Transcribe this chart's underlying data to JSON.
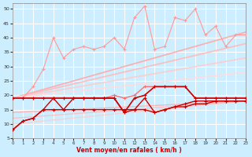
{
  "xlabel": "Vent moyen/en rafales ( km/h )",
  "xlim": [
    0,
    23
  ],
  "ylim": [
    5,
    52
  ],
  "yticks": [
    5,
    10,
    15,
    20,
    25,
    30,
    35,
    40,
    45,
    50
  ],
  "xticks": [
    0,
    1,
    2,
    3,
    4,
    5,
    6,
    7,
    8,
    9,
    10,
    11,
    12,
    13,
    14,
    15,
    16,
    17,
    18,
    19,
    20,
    21,
    22,
    23
  ],
  "bg_color": "#cceeff",
  "grid_color": "#ffffff",
  "lines": [
    {
      "x": [
        0,
        1,
        2,
        3,
        4,
        5,
        6,
        7,
        8,
        9,
        10,
        11,
        12,
        13,
        14,
        15,
        16,
        17,
        18,
        19,
        20,
        21,
        22,
        23
      ],
      "y": [
        8,
        11,
        12,
        15,
        15,
        15,
        15,
        15,
        15,
        15,
        15,
        15,
        15,
        15,
        14,
        15,
        16,
        16,
        17,
        17,
        18,
        18,
        18,
        18
      ],
      "color": "#cc0000",
      "lw": 1.0,
      "marker": "+",
      "ms": 3.0,
      "alpha": 1.0,
      "zorder": 5
    },
    {
      "x": [
        0,
        1,
        2,
        3,
        4,
        5,
        6,
        7,
        8,
        9,
        10,
        11,
        12,
        13,
        14,
        15,
        16,
        17,
        18,
        19,
        20,
        21,
        22,
        23
      ],
      "y": [
        8,
        11,
        12,
        15,
        19,
        15,
        19,
        19,
        19,
        19,
        19,
        14,
        15,
        19,
        14,
        15,
        16,
        17,
        18,
        18,
        18,
        18,
        18,
        18
      ],
      "color": "#cc0000",
      "lw": 1.0,
      "marker": "+",
      "ms": 3.0,
      "alpha": 1.0,
      "zorder": 5
    },
    {
      "x": [
        0,
        1,
        2,
        3,
        4,
        5,
        6,
        7,
        8,
        9,
        10,
        11,
        12,
        13,
        14,
        15,
        16,
        17,
        18,
        19,
        20,
        21,
        22,
        23
      ],
      "y": [
        19,
        19,
        19,
        19,
        19,
        19,
        19,
        19,
        19,
        19,
        19,
        14,
        19,
        20,
        23,
        23,
        23,
        23,
        19,
        19,
        19,
        19,
        19,
        19
      ],
      "color": "#cc0000",
      "lw": 1.2,
      "marker": "+",
      "ms": 3.0,
      "alpha": 1.0,
      "zorder": 5
    },
    {
      "x": [
        0,
        1,
        2,
        3,
        4,
        5,
        6,
        7,
        8,
        9,
        10,
        11,
        12,
        13,
        14,
        15,
        16,
        17,
        18,
        19,
        20,
        21,
        22,
        23
      ],
      "y": [
        19,
        19,
        19,
        19,
        19,
        19,
        19,
        19,
        19,
        19,
        20,
        19,
        20,
        23,
        23,
        23,
        23,
        23,
        19,
        19,
        19,
        19,
        19,
        19
      ],
      "color": "#ff6666",
      "lw": 1.0,
      "marker": "+",
      "ms": 3.0,
      "alpha": 0.9,
      "zorder": 4
    },
    {
      "x": [
        0,
        1,
        2,
        3,
        4,
        5,
        6,
        7,
        8,
        9,
        10,
        11,
        12,
        13,
        14,
        15,
        16,
        17,
        18,
        19,
        20,
        21,
        22,
        23
      ],
      "y": [
        19,
        19,
        23,
        29,
        40,
        33,
        36,
        37,
        36,
        37,
        40,
        36,
        47,
        51,
        36,
        37,
        47,
        46,
        50,
        41,
        44,
        37,
        41,
        41
      ],
      "color": "#ff9999",
      "lw": 0.8,
      "marker": "+",
      "ms": 2.5,
      "alpha": 1.0,
      "zorder": 3
    },
    {
      "x": [
        0,
        23
      ],
      "y": [
        19,
        42
      ],
      "color": "#ffaaaa",
      "lw": 1.3,
      "marker": null,
      "ms": 0,
      "alpha": 0.9,
      "zorder": 2
    },
    {
      "x": [
        0,
        23
      ],
      "y": [
        19,
        38
      ],
      "color": "#ffbbbb",
      "lw": 1.3,
      "marker": null,
      "ms": 0,
      "alpha": 0.9,
      "zorder": 2
    },
    {
      "x": [
        0,
        23
      ],
      "y": [
        19,
        33
      ],
      "color": "#ffcccc",
      "lw": 1.3,
      "marker": null,
      "ms": 0,
      "alpha": 0.9,
      "zorder": 2
    },
    {
      "x": [
        0,
        23
      ],
      "y": [
        19,
        28
      ],
      "color": "#ffdddd",
      "lw": 1.3,
      "marker": null,
      "ms": 0,
      "alpha": 0.9,
      "zorder": 2
    },
    {
      "x": [
        0,
        23
      ],
      "y": [
        10,
        18
      ],
      "color": "#ffcccc",
      "lw": 1.0,
      "marker": null,
      "ms": 0,
      "alpha": 0.8,
      "zorder": 2
    },
    {
      "x": [
        0,
        23
      ],
      "y": [
        12,
        18
      ],
      "color": "#ffbbbb",
      "lw": 1.0,
      "marker": null,
      "ms": 0,
      "alpha": 0.8,
      "zorder": 2
    },
    {
      "x": [
        0,
        23
      ],
      "y": [
        14,
        18
      ],
      "color": "#ffaaaa",
      "lw": 1.0,
      "marker": null,
      "ms": 0,
      "alpha": 0.8,
      "zorder": 2
    }
  ]
}
